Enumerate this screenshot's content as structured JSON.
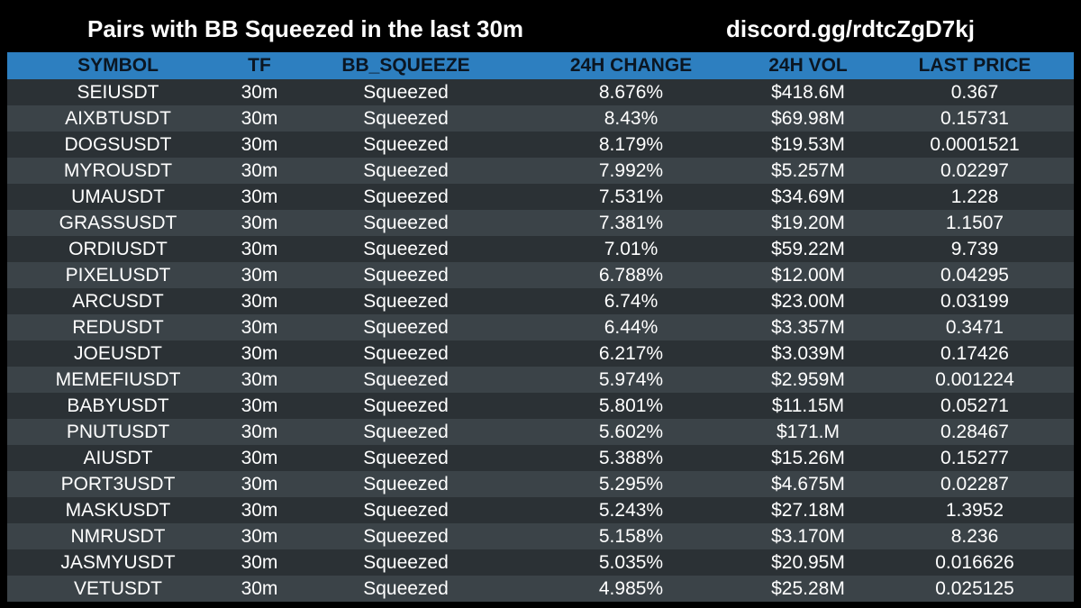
{
  "header": {
    "title": "Pairs with BB Squeezed in the last 30m",
    "invite": "discord.gg/rdtcZgD7kj"
  },
  "columns": {
    "symbol": "SYMBOL",
    "tf": "TF",
    "bb_squeeze": "BB_SQUEEZE",
    "change_24h": "24H CHANGE",
    "vol_24h": "24H VOL",
    "last_price": "LAST PRICE"
  },
  "colors": {
    "background": "#000000",
    "header_bar": "#2d7fc0",
    "row_dark": "#2b3135",
    "row_light": "#3b4348"
  },
  "rows": [
    {
      "symbol": "SEIUSDT",
      "tf": "30m",
      "bb_squeeze": "Squeezed",
      "change_24h": "8.676%",
      "vol_24h": "$418.6M",
      "last_price": "0.367"
    },
    {
      "symbol": "AIXBTUSDT",
      "tf": "30m",
      "bb_squeeze": "Squeezed",
      "change_24h": "8.43%",
      "vol_24h": "$69.98M",
      "last_price": "0.15731"
    },
    {
      "symbol": "DOGSUSDT",
      "tf": "30m",
      "bb_squeeze": "Squeezed",
      "change_24h": "8.179%",
      "vol_24h": "$19.53M",
      "last_price": "0.0001521"
    },
    {
      "symbol": "MYROUSDT",
      "tf": "30m",
      "bb_squeeze": "Squeezed",
      "change_24h": "7.992%",
      "vol_24h": "$5.257M",
      "last_price": "0.02297"
    },
    {
      "symbol": "UMAUSDT",
      "tf": "30m",
      "bb_squeeze": "Squeezed",
      "change_24h": "7.531%",
      "vol_24h": "$34.69M",
      "last_price": "1.228"
    },
    {
      "symbol": "GRASSUSDT",
      "tf": "30m",
      "bb_squeeze": "Squeezed",
      "change_24h": "7.381%",
      "vol_24h": "$19.20M",
      "last_price": "1.1507"
    },
    {
      "symbol": "ORDIUSDT",
      "tf": "30m",
      "bb_squeeze": "Squeezed",
      "change_24h": "7.01%",
      "vol_24h": "$59.22M",
      "last_price": "9.739"
    },
    {
      "symbol": "PIXELUSDT",
      "tf": "30m",
      "bb_squeeze": "Squeezed",
      "change_24h": "6.788%",
      "vol_24h": "$12.00M",
      "last_price": "0.04295"
    },
    {
      "symbol": "ARCUSDT",
      "tf": "30m",
      "bb_squeeze": "Squeezed",
      "change_24h": "6.74%",
      "vol_24h": "$23.00M",
      "last_price": "0.03199"
    },
    {
      "symbol": "REDUSDT",
      "tf": "30m",
      "bb_squeeze": "Squeezed",
      "change_24h": "6.44%",
      "vol_24h": "$3.357M",
      "last_price": "0.3471"
    },
    {
      "symbol": "JOEUSDT",
      "tf": "30m",
      "bb_squeeze": "Squeezed",
      "change_24h": "6.217%",
      "vol_24h": "$3.039M",
      "last_price": "0.17426"
    },
    {
      "symbol": "MEMEFIUSDT",
      "tf": "30m",
      "bb_squeeze": "Squeezed",
      "change_24h": "5.974%",
      "vol_24h": "$2.959M",
      "last_price": "0.001224"
    },
    {
      "symbol": "BABYUSDT",
      "tf": "30m",
      "bb_squeeze": "Squeezed",
      "change_24h": "5.801%",
      "vol_24h": "$11.15M",
      "last_price": "0.05271"
    },
    {
      "symbol": "PNUTUSDT",
      "tf": "30m",
      "bb_squeeze": "Squeezed",
      "change_24h": "5.602%",
      "vol_24h": "$171.M",
      "last_price": "0.28467"
    },
    {
      "symbol": "AIUSDT",
      "tf": "30m",
      "bb_squeeze": "Squeezed",
      "change_24h": "5.388%",
      "vol_24h": "$15.26M",
      "last_price": "0.15277"
    },
    {
      "symbol": "PORT3USDT",
      "tf": "30m",
      "bb_squeeze": "Squeezed",
      "change_24h": "5.295%",
      "vol_24h": "$4.675M",
      "last_price": "0.02287"
    },
    {
      "symbol": "MASKUSDT",
      "tf": "30m",
      "bb_squeeze": "Squeezed",
      "change_24h": "5.243%",
      "vol_24h": "$27.18M",
      "last_price": "1.3952"
    },
    {
      "symbol": "NMRUSDT",
      "tf": "30m",
      "bb_squeeze": "Squeezed",
      "change_24h": "5.158%",
      "vol_24h": "$3.170M",
      "last_price": "8.236"
    },
    {
      "symbol": "JASMYUSDT",
      "tf": "30m",
      "bb_squeeze": "Squeezed",
      "change_24h": "5.035%",
      "vol_24h": "$20.95M",
      "last_price": "0.016626"
    },
    {
      "symbol": "VETUSDT",
      "tf": "30m",
      "bb_squeeze": "Squeezed",
      "change_24h": "4.985%",
      "vol_24h": "$25.28M",
      "last_price": "0.025125"
    }
  ]
}
